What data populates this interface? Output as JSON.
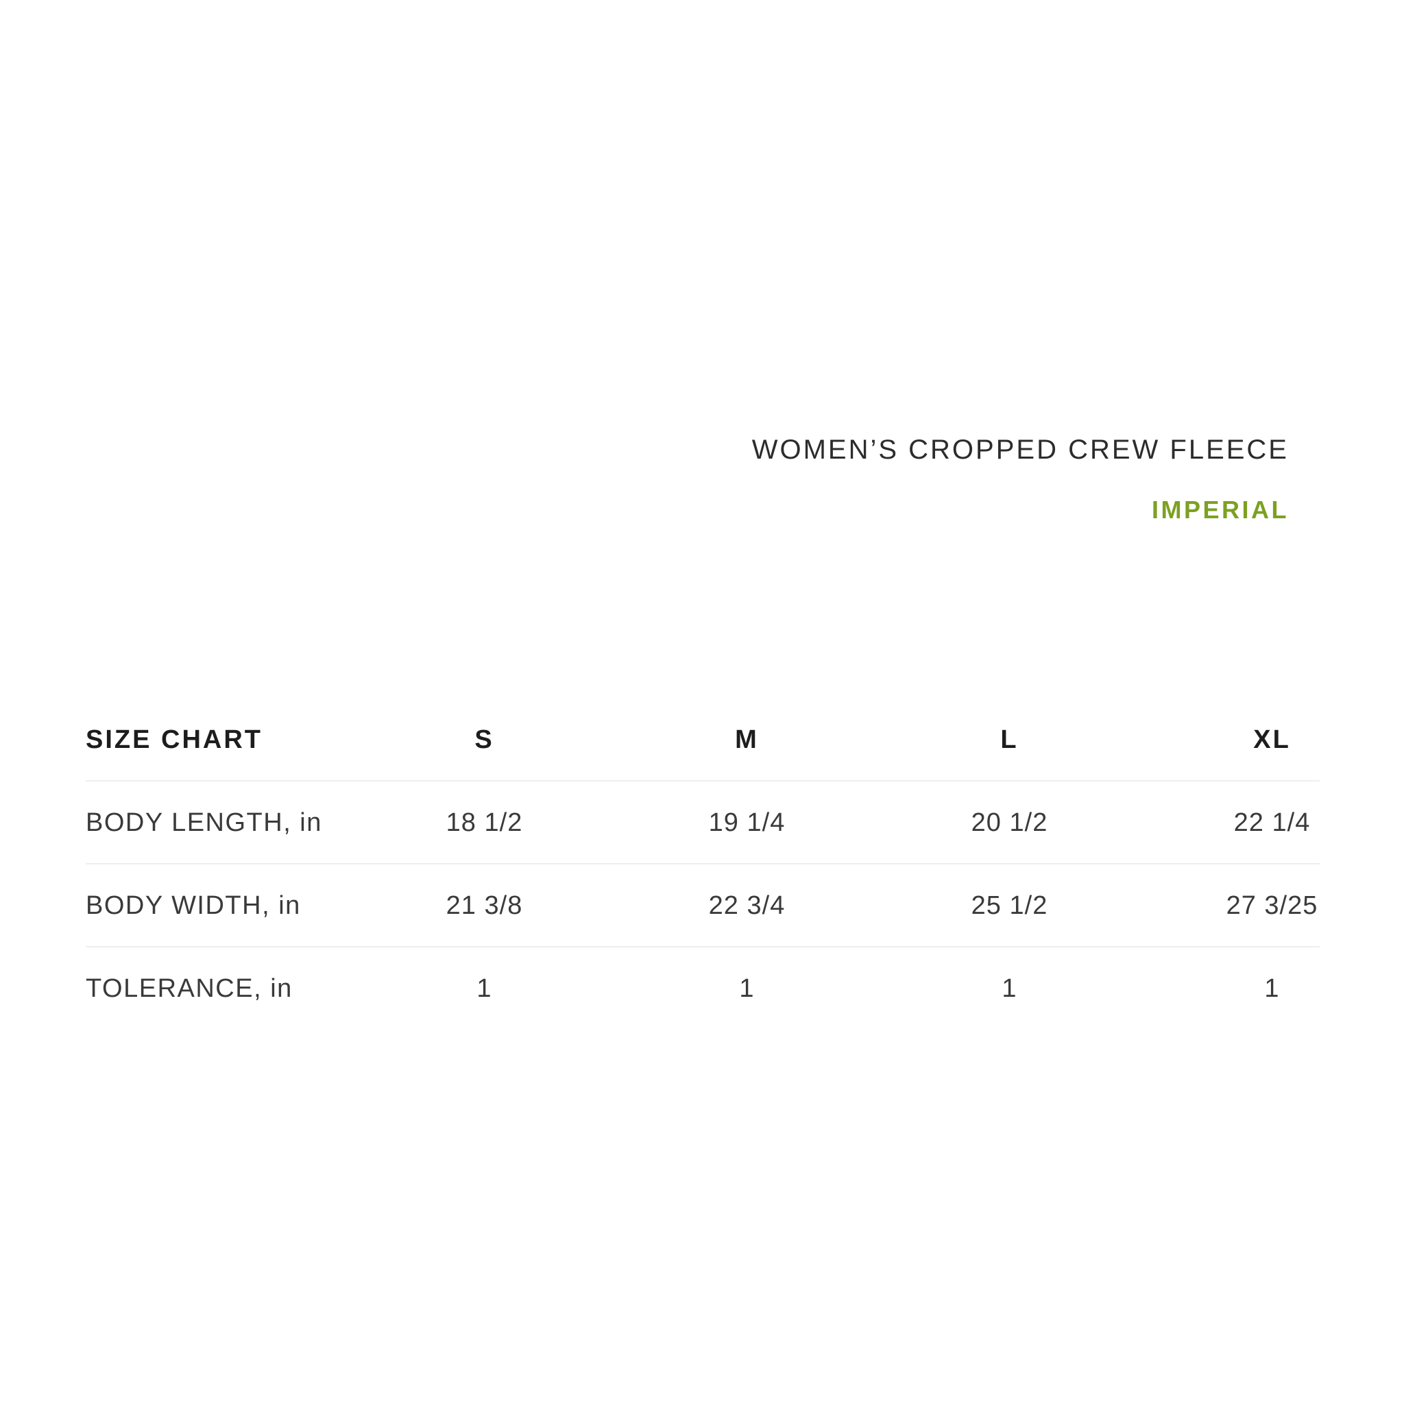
{
  "header": {
    "product_title": "WOMEN’S CROPPED CREW FLEECE",
    "units_label": "IMPERIAL"
  },
  "colors": {
    "accent_green": "#7ca122",
    "title_text": "#2c2c2c",
    "table_text": "#3a3a3a",
    "table_bold_text": "#1d1d1d",
    "divider": "#eeeeee",
    "background": "#ffffff"
  },
  "size_chart": {
    "title": "SIZE CHART",
    "columns": [
      "S",
      "M",
      "L",
      "XL"
    ],
    "rows": [
      {
        "label": "BODY LENGTH, in",
        "values": [
          "18 1/2",
          "19 1/4",
          "20 1/2",
          "22 1/4"
        ]
      },
      {
        "label": "BODY WIDTH, in",
        "values": [
          "21 3/8",
          "22 3/4",
          "25 1/2",
          "27 3/25"
        ]
      },
      {
        "label": "TOLERANCE, in",
        "values": [
          "1",
          "1",
          "1",
          "1"
        ]
      }
    ]
  }
}
